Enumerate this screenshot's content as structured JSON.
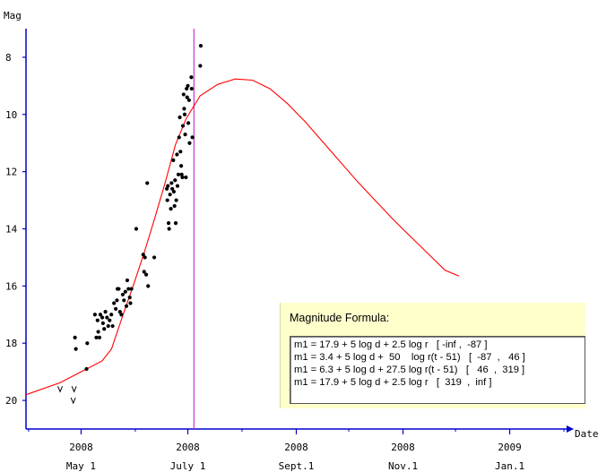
{
  "chart_data": {
    "type": "scatter",
    "ylabel": "Mag",
    "xlabel": "Date",
    "ylim": [
      21,
      7
    ],
    "y_ticks": [
      8,
      10,
      12,
      14,
      16,
      18,
      20
    ],
    "x_ticks": [
      {
        "year": "2008",
        "month": "May 1"
      },
      {
        "year": "2008",
        "month": "July 1"
      },
      {
        "year": "2008",
        "month": "Sept.1"
      },
      {
        "year": "2008",
        "month": "Nov.1"
      },
      {
        "year": "2009",
        "month": "Jan.1"
      }
    ],
    "xrange_days": [
      -31.5,
      277.5
    ],
    "observations": [
      [
        3.1,
        18.9
      ],
      [
        3.5,
        18.0
      ],
      [
        -3.5,
        17.8
      ],
      [
        -3.0,
        18.2
      ],
      [
        7.9,
        17.0
      ],
      [
        9.4,
        17.2
      ],
      [
        8.7,
        17.8
      ],
      [
        9.8,
        17.6
      ],
      [
        10.5,
        17.8
      ],
      [
        11.0,
        17.0
      ],
      [
        12.1,
        17.1
      ],
      [
        12.5,
        17.3
      ],
      [
        13.2,
        17.5
      ],
      [
        13.9,
        16.9
      ],
      [
        14.8,
        17.1
      ],
      [
        15.5,
        17.4
      ],
      [
        16.3,
        17.2
      ],
      [
        17.3,
        17.0
      ],
      [
        18.0,
        17.4
      ],
      [
        18.8,
        16.6
      ],
      [
        19.8,
        16.8
      ],
      [
        20.5,
        16.5
      ],
      [
        20.8,
        16.1
      ],
      [
        21.5,
        16.1
      ],
      [
        22.2,
        16.9
      ],
      [
        23.0,
        17.0
      ],
      [
        23.8,
        16.3
      ],
      [
        24.5,
        16.5
      ],
      [
        25.3,
        16.2
      ],
      [
        25.9,
        16.7
      ],
      [
        26.4,
        15.8
      ],
      [
        27.1,
        16.1
      ],
      [
        27.8,
        16.4
      ],
      [
        28.2,
        16.6
      ],
      [
        28.8,
        16.1
      ],
      [
        31.5,
        14.0
      ],
      [
        35.5,
        14.9
      ],
      [
        36.0,
        15.5
      ],
      [
        36.5,
        15.0
      ],
      [
        37.2,
        15.6
      ],
      [
        37.8,
        12.4
      ],
      [
        38.3,
        16.0
      ],
      [
        41.8,
        15.0
      ],
      [
        49.0,
        12.6
      ],
      [
        49.3,
        13.0
      ],
      [
        49.6,
        12.5
      ],
      [
        50.0,
        13.8
      ],
      [
        50.3,
        14.0
      ],
      [
        50.8,
        12.8
      ],
      [
        51.3,
        13.3
      ],
      [
        51.7,
        12.4
      ],
      [
        52.1,
        12.6
      ],
      [
        52.7,
        11.6
      ],
      [
        53.0,
        12.7
      ],
      [
        53.4,
        13.2
      ],
      [
        53.7,
        12.3
      ],
      [
        54.1,
        13.8
      ],
      [
        54.4,
        13.0
      ],
      [
        54.8,
        11.4
      ],
      [
        55.1,
        12.5
      ],
      [
        55.6,
        12.1
      ],
      [
        56.0,
        10.8
      ],
      [
        56.4,
        10.1
      ],
      [
        56.8,
        11.3
      ],
      [
        57.2,
        11.8
      ],
      [
        57.5,
        12.1
      ],
      [
        57.9,
        12.2
      ],
      [
        58.2,
        10.4
      ],
      [
        58.6,
        9.3
      ],
      [
        58.9,
        9.8
      ],
      [
        59.2,
        10.0
      ],
      [
        59.5,
        10.7
      ],
      [
        59.9,
        12.2
      ],
      [
        60.3,
        9.1
      ],
      [
        60.6,
        9.4
      ],
      [
        61.0,
        9.0
      ],
      [
        61.3,
        10.3
      ],
      [
        61.7,
        9.5
      ],
      [
        62.0,
        11.0
      ],
      [
        63.0,
        8.7
      ],
      [
        63.2,
        9.1
      ],
      [
        63.6,
        10.8
      ],
      [
        68.4,
        7.6
      ],
      [
        68.1,
        8.3
      ]
    ],
    "nondetections": [
      [
        -12.0,
        19.6
      ],
      [
        -4.0,
        19.6
      ],
      [
        -4.5,
        20.0
      ]
    ],
    "model_curve": [
      [
        -31.5,
        19.8
      ],
      [
        -12,
        19.38
      ],
      [
        0,
        19.0
      ],
      [
        12,
        18.62
      ],
      [
        17.4,
        18.2
      ],
      [
        24,
        17.0
      ],
      [
        30,
        15.95
      ],
      [
        36,
        14.85
      ],
      [
        42,
        13.65
      ],
      [
        48,
        12.4
      ],
      [
        54,
        11.05
      ],
      [
        60,
        10.15
      ],
      [
        68,
        9.35
      ],
      [
        78,
        8.95
      ],
      [
        88,
        8.76
      ],
      [
        98,
        8.8
      ],
      [
        108,
        9.1
      ],
      [
        118,
        9.62
      ],
      [
        128,
        10.25
      ],
      [
        138,
        10.95
      ],
      [
        148,
        11.65
      ],
      [
        158,
        12.35
      ],
      [
        168,
        13.0
      ],
      [
        178,
        13.65
      ],
      [
        188,
        14.25
      ],
      [
        198,
        14.85
      ],
      [
        208,
        15.45
      ],
      [
        216,
        15.65
      ]
    ],
    "marker_day": 64.5,
    "colors": {
      "axis": "#0000cc",
      "curve": "#ff0000",
      "marker": "#cc33cc",
      "points": "#000000"
    }
  },
  "formula_box": {
    "title": "Magnitude Formula:",
    "lines": [
      "m1 = 17.9 + 5 log d + 2.5 log r   [ -inf ,  -87 ]",
      "m1 = 3.4 + 5 log d +  50    log r(t - 51)   [  -87  ,   46 ]",
      "m1 = 6.3 + 5 log d + 27.5 log r(t - 51)   [   46  ,  319 ]",
      "m1 = 17.9 + 5 log d + 2.5 log r   [  319  ,  inf ]"
    ]
  }
}
